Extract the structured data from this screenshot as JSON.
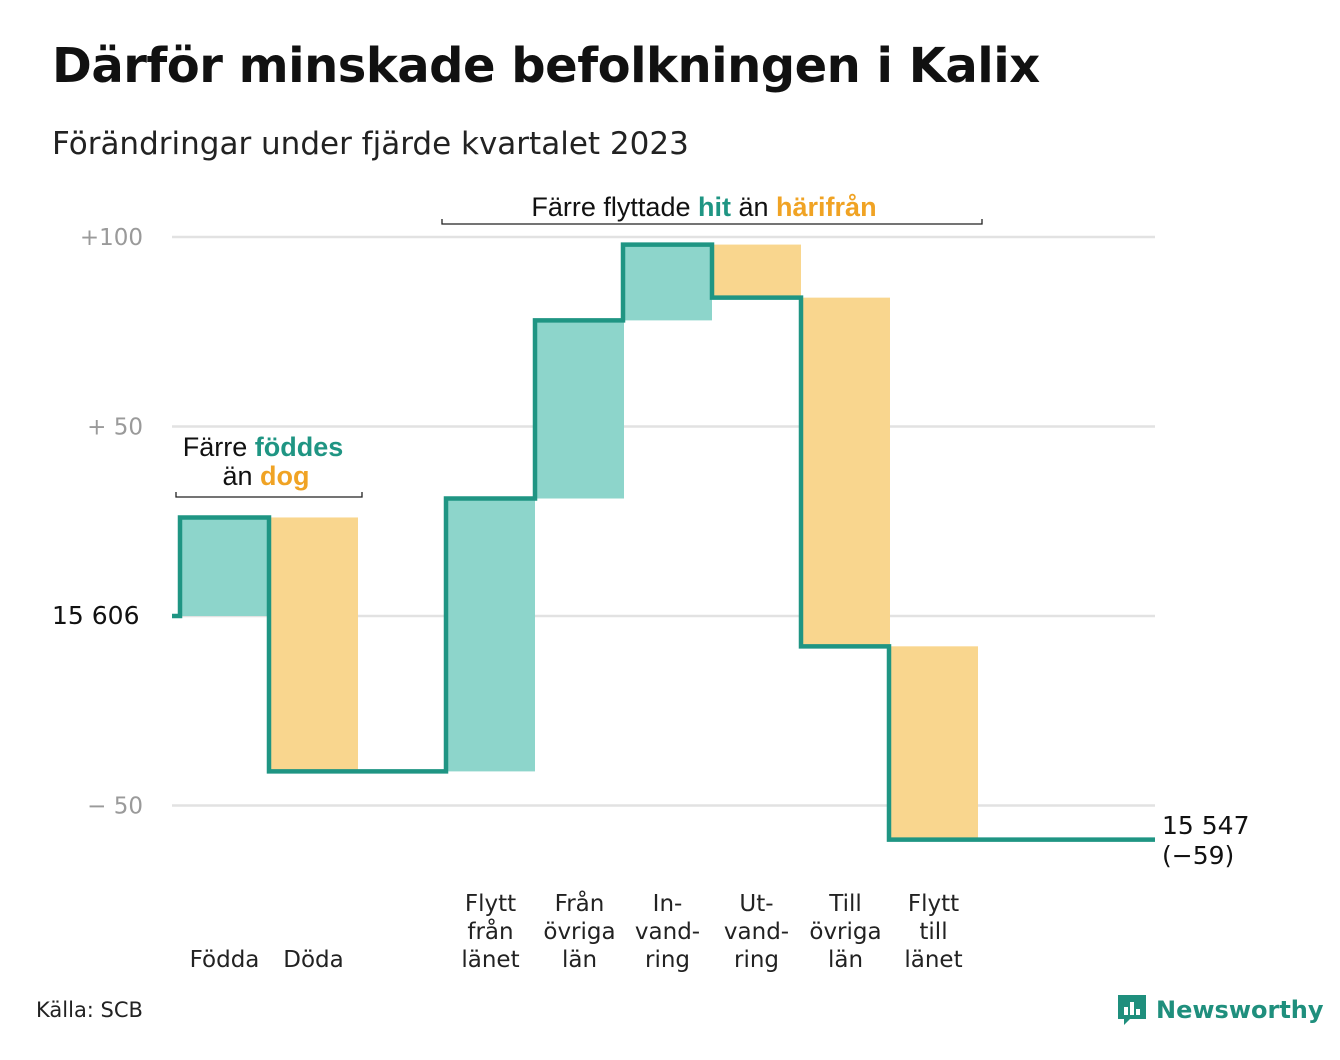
{
  "title": "Därför minskade befolkningen i Kalix",
  "subtitle": "Förändringar under fjärde kvartalet 2023",
  "source": "Källa: SCB",
  "logo": "Newsworthy",
  "colors": {
    "increase": "#8dd5cb",
    "decrease": "#f9d68e",
    "line": "#1f9583",
    "grid": "#e2e2e2"
  },
  "annotations": {
    "birth": {
      "line1_pre": "Färre",
      "line1_hi": "föddes",
      "line2_pre": "än",
      "line2_hi": "dog"
    },
    "move": {
      "pre": "Färre flyttade",
      "hi1": "hit",
      "mid": "än",
      "hi2": "härifrån"
    }
  },
  "chart_data": {
    "type": "waterfall",
    "start": {
      "label": "15 606",
      "value": 0
    },
    "y_ticks": [
      {
        "value": 100,
        "label": "+100"
      },
      {
        "value": 50,
        "label": "+ 50"
      },
      {
        "value": -50,
        "label": "− 50"
      }
    ],
    "ylim": [
      -65,
      100
    ],
    "steps": [
      {
        "name": "Födda",
        "lines": [
          "Födda"
        ],
        "change": 26,
        "kind": "increase"
      },
      {
        "name": "Döda",
        "lines": [
          "Döda"
        ],
        "change": -67,
        "kind": "decrease"
      },
      {
        "name": "Flytt från länet",
        "lines": [
          "Flytt",
          "från",
          "länet"
        ],
        "change": 72,
        "kind": "increase"
      },
      {
        "name": "Från övriga län",
        "lines": [
          "Från",
          "övriga",
          "län"
        ],
        "change": 47,
        "kind": "increase"
      },
      {
        "name": "Invandring",
        "lines": [
          "In-",
          "vand-",
          "ring"
        ],
        "change": 20,
        "kind": "increase"
      },
      {
        "name": "Utvandring",
        "lines": [
          "Ut-",
          "vand-",
          "ring"
        ],
        "change": -14,
        "kind": "decrease"
      },
      {
        "name": "Till övriga län",
        "lines": [
          "Till",
          "övriga",
          "län"
        ],
        "change": -92,
        "kind": "decrease"
      },
      {
        "name": "Flytt till länet",
        "lines": [
          "Flytt",
          "till",
          "länet"
        ],
        "change": -51,
        "kind": "decrease"
      }
    ],
    "end": {
      "label": "15 547",
      "change_label": "(−59)",
      "value": -59
    }
  }
}
